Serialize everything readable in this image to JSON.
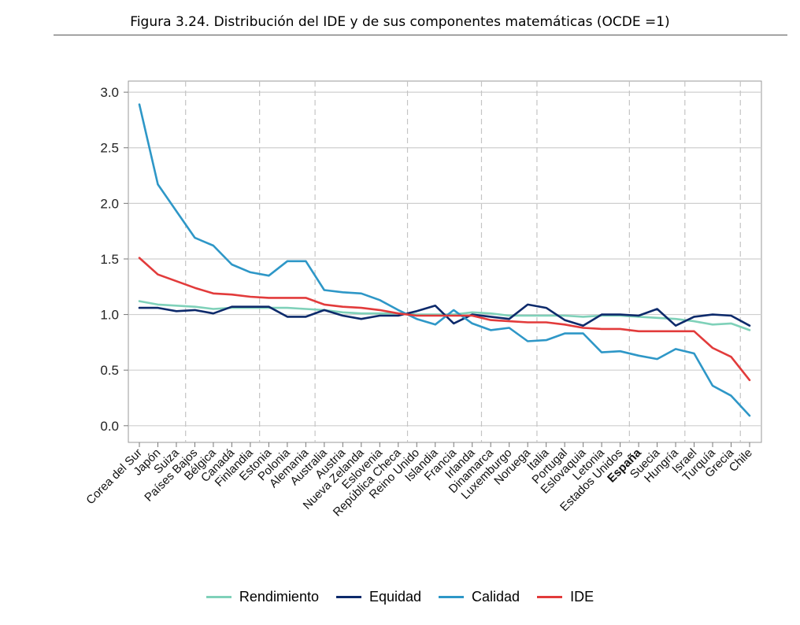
{
  "figure": {
    "title": "Figura 3.24. Distribución del IDE y de sus componentes matemáticas (OCDE =1)"
  },
  "chart_data": {
    "type": "line",
    "title": "Figura 3.24. Distribución del IDE y de sus componentes matemáticas (OCDE =1)",
    "xlabel": "",
    "ylabel": "",
    "ylim": [
      -0.15,
      3.1
    ],
    "yticks": [
      "3.0",
      "2.5",
      "2.0",
      "1.5",
      "1.0",
      "0.5",
      "0.0"
    ],
    "ytick_values": [
      3.0,
      2.5,
      2.0,
      1.5,
      1.0,
      0.5,
      0.0
    ],
    "grid": true,
    "legend_position": "bottom",
    "highlighted_category": "España",
    "vertical_group_dividers_after": [
      "Suiza",
      "Finlandia",
      "Alemania",
      "República Checa",
      "Irlanda",
      "Noruega",
      "Estados Unidos",
      "Hungría",
      "Grecia"
    ],
    "categories": [
      "Corea del Sur",
      "Japón",
      "Suiza",
      "Países Bajos",
      "Bélgica",
      "Canadá",
      "Finlandia",
      "Estonia",
      "Polonia",
      "Alemania",
      "Australia",
      "Austria",
      "Nueva Zelanda",
      "Eslovenia",
      "República Checa",
      "Reino Unido",
      "Islandia",
      "Francia",
      "Irlanda",
      "Dinamarca",
      "Luxemburgo",
      "Noruega",
      "Italia",
      "Portugal",
      "Eslovaquia",
      "Letonia",
      "Estados Unidos",
      "España",
      "Suecia",
      "Hungría",
      "Israel",
      "Turquía",
      "Grecia",
      "Chile"
    ],
    "series": [
      {
        "name": "Rendimiento",
        "color": "#7fd1b9",
        "values": [
          1.12,
          1.09,
          1.08,
          1.07,
          1.05,
          1.06,
          1.06,
          1.06,
          1.06,
          1.05,
          1.04,
          1.02,
          1.01,
          1.01,
          1.01,
          1.0,
          1.0,
          1.0,
          1.02,
          1.01,
          0.99,
          0.99,
          0.99,
          0.99,
          0.98,
          0.99,
          0.99,
          0.98,
          0.97,
          0.96,
          0.94,
          0.91,
          0.92,
          0.86
        ]
      },
      {
        "name": "Equidad",
        "color": "#0d2a6b",
        "values": [
          1.06,
          1.06,
          1.03,
          1.04,
          1.01,
          1.07,
          1.07,
          1.07,
          0.98,
          0.98,
          1.04,
          0.99,
          0.96,
          0.99,
          0.99,
          1.03,
          1.08,
          0.92,
          1.0,
          0.98,
          0.96,
          1.09,
          1.06,
          0.95,
          0.9,
          1.0,
          1.0,
          0.99,
          1.05,
          0.9,
          0.98,
          1.0,
          0.99,
          0.9
        ]
      },
      {
        "name": "Calidad",
        "color": "#2e97c7",
        "values": [
          2.89,
          2.17,
          1.93,
          1.69,
          1.62,
          1.45,
          1.38,
          1.35,
          1.48,
          1.48,
          1.22,
          1.2,
          1.19,
          1.13,
          1.04,
          0.96,
          0.91,
          1.04,
          0.92,
          0.86,
          0.88,
          0.76,
          0.77,
          0.83,
          0.83,
          0.66,
          0.67,
          0.63,
          0.6,
          0.69,
          0.65,
          0.36,
          0.27,
          0.09
        ]
      },
      {
        "name": "IDE",
        "color": "#e23b3b",
        "values": [
          1.51,
          1.36,
          1.3,
          1.24,
          1.19,
          1.18,
          1.16,
          1.15,
          1.15,
          1.15,
          1.09,
          1.07,
          1.06,
          1.04,
          1.01,
          0.99,
          0.99,
          0.99,
          0.99,
          0.95,
          0.94,
          0.93,
          0.93,
          0.91,
          0.88,
          0.87,
          0.87,
          0.85,
          0.85,
          0.85,
          0.85,
          0.7,
          0.62,
          0.41
        ]
      }
    ]
  },
  "legend": {
    "items": [
      {
        "label": "Rendimiento",
        "color": "#7fd1b9"
      },
      {
        "label": "Equidad",
        "color": "#0d2a6b"
      },
      {
        "label": "Calidad",
        "color": "#2e97c7"
      },
      {
        "label": "IDE",
        "color": "#e23b3b"
      }
    ]
  }
}
